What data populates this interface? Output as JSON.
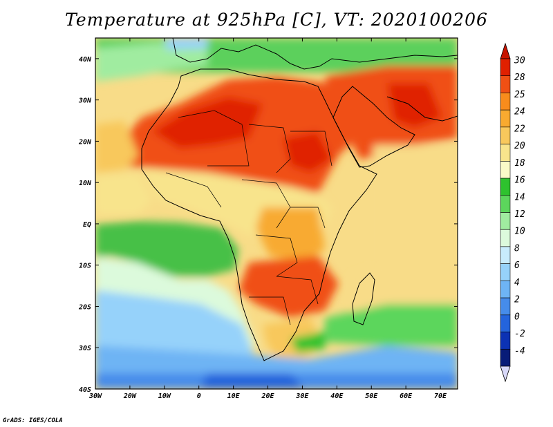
{
  "title": "Temperature at 925hPa [C], VT: 2020100206",
  "credit": "GrADS: IGES/COLA",
  "map": {
    "lat_labels": [
      "40N",
      "30N",
      "20N",
      "10N",
      "EQ",
      "10S",
      "20S",
      "30S",
      "40S"
    ],
    "lon_labels": [
      "30W",
      "20W",
      "10W",
      "0",
      "10E",
      "20E",
      "30E",
      "40E",
      "50E",
      "60E",
      "70E"
    ],
    "lat_range": [
      -40,
      45
    ],
    "lon_range": [
      -30,
      75
    ],
    "zones": [
      {
        "name": "ocean-north",
        "color": "#5cd05c"
      },
      {
        "name": "sahara-hot",
        "color": "#e84a10"
      },
      {
        "name": "arabia-hot",
        "color": "#f06a14"
      },
      {
        "name": "sahel-warm",
        "color": "#f8b444"
      },
      {
        "name": "indian-ocean-warm",
        "color": "#f8dc88"
      },
      {
        "name": "equatorial-atlantic",
        "color": "#46c046"
      },
      {
        "name": "south-atlantic-cool",
        "color": "#96d2f8"
      },
      {
        "name": "southern-ocean-cold",
        "color": "#4696f0"
      }
    ]
  },
  "colorbar": {
    "levels": [
      "30",
      "28",
      "25",
      "24",
      "22",
      "20",
      "18",
      "16",
      "14",
      "12",
      "10",
      "8",
      "6",
      "4",
      "2",
      "0",
      "-2",
      "-4"
    ],
    "colors": [
      "#e02000",
      "#f05014",
      "#f88c1c",
      "#f8aa30",
      "#f8c85c",
      "#f8e48c",
      "#fafac8",
      "#2ec22e",
      "#5cd65c",
      "#a0eca0",
      "#dcfadc",
      "#c8ecfc",
      "#96d2fa",
      "#6eb4f4",
      "#468cea",
      "#2464dc",
      "#0c32b4",
      "#081c78"
    ],
    "top_arrow_color": "#c81400",
    "bottom_arrow_color": "#d8d8f8"
  }
}
